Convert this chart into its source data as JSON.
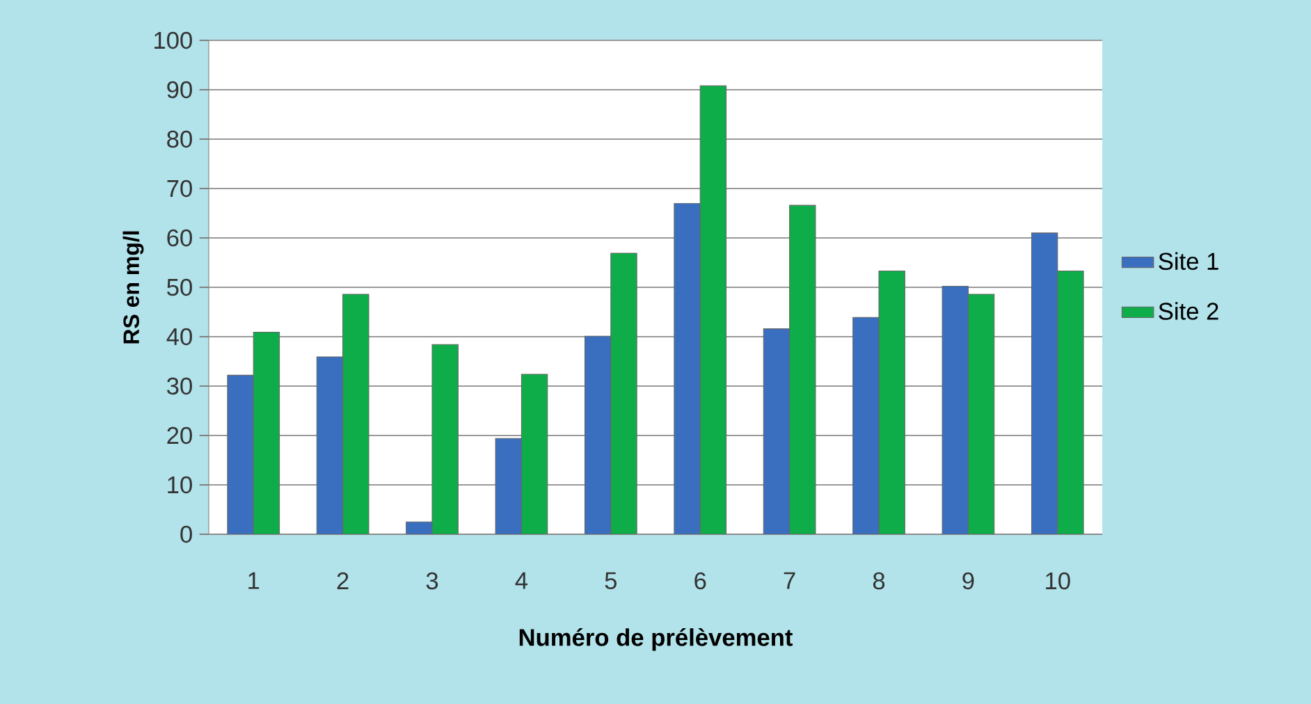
{
  "chart_data": {
    "type": "bar",
    "xlabel": "Numéro de prélèvement",
    "ylabel": "RS en mg/l",
    "categories": [
      "1",
      "2",
      "3",
      "4",
      "5",
      "6",
      "7",
      "8",
      "9",
      "10"
    ],
    "series": [
      {
        "name": "Site 1",
        "color": "#3a6fc0",
        "values": [
          32.2,
          35.9,
          2.5,
          19.4,
          40.1,
          67,
          41.6,
          43.9,
          50.2,
          61
        ]
      },
      {
        "name": "Site 2",
        "color": "#0fad4a",
        "values": [
          40.9,
          48.6,
          38.4,
          32.4,
          56.9,
          90.8,
          66.6,
          53.3,
          48.6,
          53.3
        ]
      }
    ],
    "ylim": [
      0,
      100
    ],
    "yticks": [
      0,
      10,
      20,
      30,
      40,
      50,
      60,
      70,
      80,
      90,
      100
    ],
    "grid": "y",
    "legend": "right"
  }
}
